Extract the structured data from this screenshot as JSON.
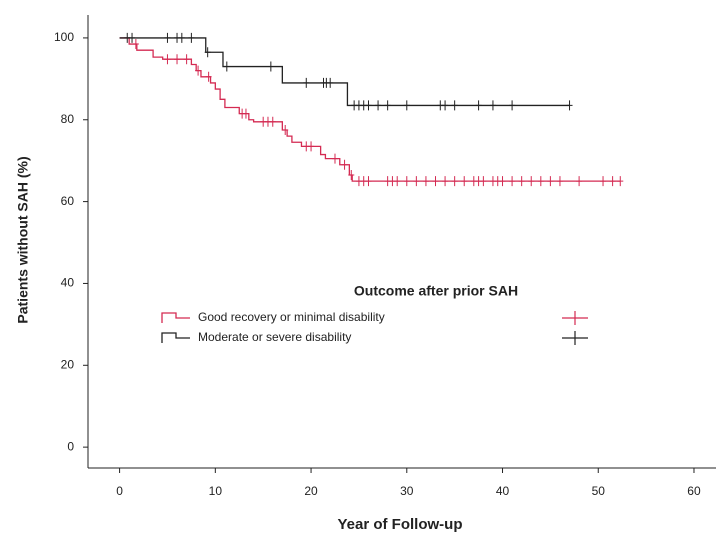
{
  "chart_data": {
    "type": "km",
    "x_label": "Year of Follow-up",
    "y_label": "Patients without SAH (%)",
    "xlim": [
      -3.3,
      62.3
    ],
    "ylim": [
      -5.1,
      105.6
    ],
    "xticks": [
      0,
      10,
      20,
      30,
      40,
      50,
      60
    ],
    "yticks": [
      0,
      20,
      40,
      60,
      80,
      100
    ],
    "legend_title": "Outcome after prior SAH",
    "legend": "center",
    "series": [
      {
        "name": "Good recovery or minimal disability",
        "color": "#d42a52",
        "x": [
          0,
          1,
          1.8,
          3.5,
          4.5,
          7.5,
          8,
          8.5,
          9.5,
          10,
          10.5,
          11,
          12.5,
          13.5,
          14,
          17,
          17.5,
          18,
          19,
          21,
          21.5,
          23,
          24,
          24.3,
          52.3
        ],
        "values": [
          100,
          98.5,
          97,
          95.3,
          94.8,
          93.5,
          92,
          90.5,
          89,
          87.5,
          85,
          83,
          81.5,
          80,
          79.5,
          77.5,
          76,
          74.5,
          73.5,
          71.5,
          70.5,
          69,
          66.5,
          65,
          65
        ],
        "censored_x": [
          1.7,
          5,
          6,
          7,
          8.2,
          9.3,
          12.8,
          13.2,
          15,
          15.5,
          16,
          17.3,
          19.5,
          20,
          22.5,
          23.5,
          24.2,
          25,
          25.5,
          26,
          28,
          28.5,
          29,
          30,
          31,
          32,
          33,
          34,
          35,
          36,
          37,
          37.5,
          38,
          39,
          39.5,
          40,
          41,
          42,
          43,
          44,
          45,
          46,
          48,
          50.5,
          51.5,
          52.3
        ],
        "censored_values": [
          98.5,
          94.8,
          94.8,
          94.8,
          92,
          90.5,
          81.5,
          81.5,
          79.5,
          79.5,
          79.5,
          77.5,
          73.5,
          73.5,
          70.5,
          69,
          66.5,
          65,
          65,
          65,
          65,
          65,
          65,
          65,
          65,
          65,
          65,
          65,
          65,
          65,
          65,
          65,
          65,
          65,
          65,
          65,
          65,
          65,
          65,
          65,
          65,
          65,
          65,
          65,
          65,
          65
        ]
      },
      {
        "name": "Moderate or severe disability",
        "color": "#222222",
        "x": [
          0,
          9,
          10.8,
          17,
          23.8,
          47
        ],
        "values": [
          100,
          96.5,
          93,
          89,
          83.5,
          83.5
        ],
        "censored_x": [
          0.8,
          1.3,
          5,
          6,
          6.5,
          7.5,
          9.2,
          11.2,
          15.8,
          19.5,
          21.3,
          21.6,
          22,
          24.5,
          25,
          25.5,
          26,
          27,
          28,
          30,
          33.5,
          34,
          35,
          37.5,
          39,
          41,
          47
        ],
        "censored_values": [
          100,
          100,
          100,
          100,
          100,
          100,
          96.5,
          93,
          93,
          89,
          89,
          89,
          89,
          83.5,
          83.5,
          83.5,
          83.5,
          83.5,
          83.5,
          83.5,
          83.5,
          83.5,
          83.5,
          83.5,
          83.5,
          83.5,
          83.5
        ]
      }
    ]
  }
}
